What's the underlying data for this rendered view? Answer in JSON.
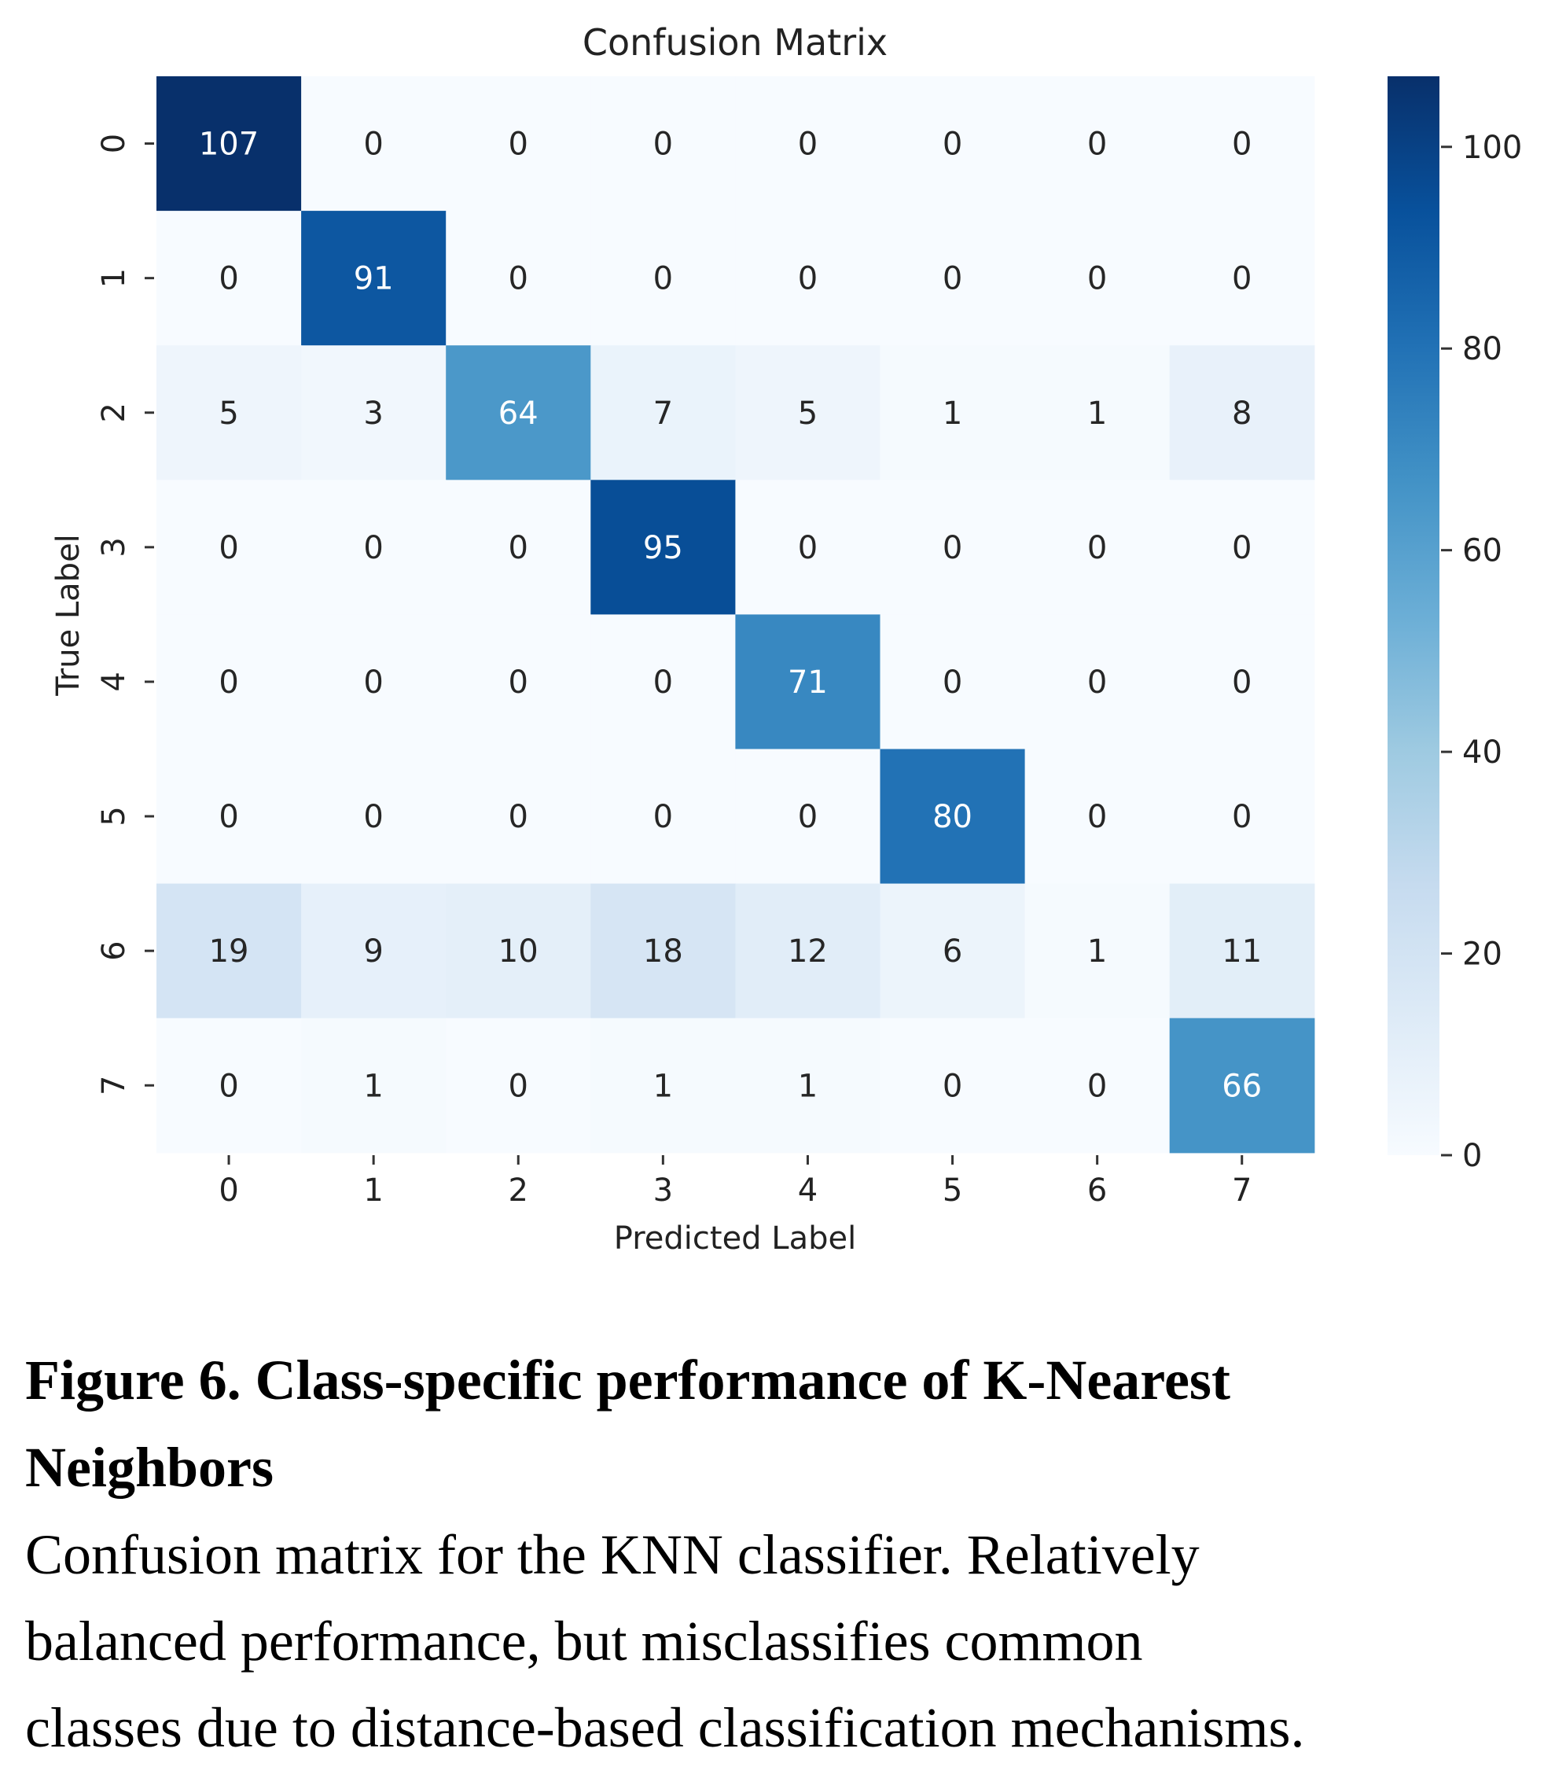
{
  "chart_data": {
    "type": "heatmap",
    "title": "Confusion Matrix",
    "xlabel": "Predicted Label",
    "ylabel": "True Label",
    "x_ticks": [
      "0",
      "1",
      "2",
      "3",
      "4",
      "5",
      "6",
      "7"
    ],
    "y_ticks": [
      "0",
      "1",
      "2",
      "3",
      "4",
      "5",
      "6",
      "7"
    ],
    "matrix": [
      [
        107,
        0,
        0,
        0,
        0,
        0,
        0,
        0
      ],
      [
        0,
        91,
        0,
        0,
        0,
        0,
        0,
        0
      ],
      [
        5,
        3,
        64,
        7,
        5,
        1,
        1,
        8
      ],
      [
        0,
        0,
        0,
        95,
        0,
        0,
        0,
        0
      ],
      [
        0,
        0,
        0,
        0,
        71,
        0,
        0,
        0
      ],
      [
        0,
        0,
        0,
        0,
        0,
        80,
        0,
        0
      ],
      [
        19,
        9,
        10,
        18,
        12,
        6,
        1,
        11
      ],
      [
        0,
        1,
        0,
        1,
        1,
        0,
        0,
        66
      ]
    ],
    "colormap": "Blues",
    "colorbar": {
      "range": [
        0,
        107
      ],
      "ticks": [
        "0",
        "20",
        "40",
        "60",
        "80",
        "100"
      ]
    },
    "grid": false
  },
  "caption": {
    "title_lines": [
      "Figure 6. Class-specific performance of K-Nearest",
      "Neighbors"
    ],
    "body_lines": [
      "Confusion matrix for the KNN classifier. Relatively",
      "balanced performance, but misclassifies common",
      "classes due to distance-based classification mechanisms."
    ]
  }
}
